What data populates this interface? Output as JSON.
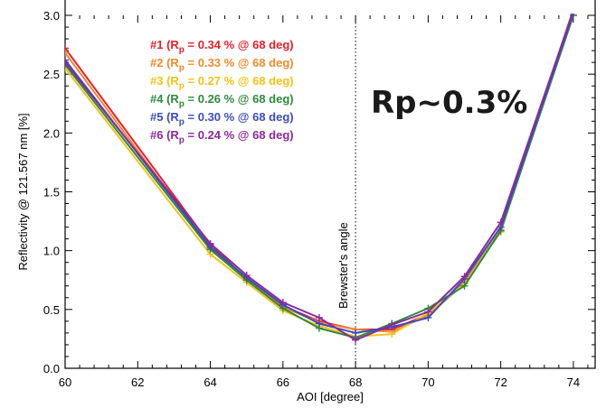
{
  "chart_data": {
    "type": "line",
    "title": "",
    "xlabel": "AOI [degree]",
    "ylabel": "Reflectivity @ 121.567 nm [%]",
    "xlim": [
      60,
      74.6
    ],
    "ylim": [
      0.0,
      3.0
    ],
    "xticks": [
      60,
      62,
      64,
      66,
      68,
      70,
      72,
      74
    ],
    "xtick_labels": [
      "60",
      "62",
      "64",
      "66",
      "68",
      "70",
      "72",
      "74"
    ],
    "yticks": [
      0.0,
      0.5,
      1.0,
      1.5,
      2.0,
      2.5,
      3.0
    ],
    "ytick_labels": [
      "0.0",
      "0.5",
      "1.0",
      "1.5",
      "2.0",
      "2.5",
      "3.0"
    ],
    "grid": false,
    "legend_placement": "top-left",
    "x": [
      60,
      64,
      65,
      66,
      67,
      68,
      69,
      70,
      71,
      72,
      74
    ],
    "series": [
      {
        "name": "#1",
        "legend_text": "#1 (R",
        "sub": "p",
        "legend_suffix": " = 0.34 % @ 68 deg)",
        "color": "#e8202a",
        "values": [
          2.72,
          1.05,
          0.76,
          0.53,
          0.4,
          0.33,
          0.33,
          0.46,
          0.73,
          1.18,
          3.05
        ]
      },
      {
        "name": "#2",
        "legend_text": "#2 (R",
        "sub": "p",
        "legend_suffix": " = 0.33 % @ 68 deg)",
        "color": "#f08a2c",
        "values": [
          2.68,
          1.02,
          0.75,
          0.52,
          0.39,
          0.33,
          0.31,
          0.45,
          0.72,
          1.16,
          3.02
        ]
      },
      {
        "name": "#3",
        "legend_text": "#3 (R",
        "sub": "p",
        "legend_suffix": " = 0.27 % @ 68 deg)",
        "color": "#f2c218",
        "values": [
          2.55,
          0.97,
          0.73,
          0.49,
          0.36,
          0.27,
          0.29,
          0.47,
          0.72,
          1.18,
          3.0
        ]
      },
      {
        "name": "#4",
        "legend_text": "#4 (R",
        "sub": "p",
        "legend_suffix": " = 0.26 % @ 68 deg)",
        "color": "#2e8b3a",
        "values": [
          2.58,
          1.01,
          0.75,
          0.51,
          0.34,
          0.26,
          0.38,
          0.51,
          0.7,
          1.17,
          3.0
        ]
      },
      {
        "name": "#5",
        "legend_text": "#5 (R",
        "sub": "p",
        "legend_suffix": " = 0.30 % @ 68 deg)",
        "color": "#3a4cc0",
        "values": [
          2.62,
          1.03,
          0.77,
          0.54,
          0.38,
          0.3,
          0.35,
          0.43,
          0.76,
          1.2,
          3.02
        ]
      },
      {
        "name": "#6",
        "legend_text": "#6 (R",
        "sub": "p",
        "legend_suffix": " = 0.24 % @ 68 deg)",
        "color": "#8a2a9e",
        "values": [
          2.6,
          1.06,
          0.79,
          0.56,
          0.43,
          0.24,
          0.37,
          0.48,
          0.78,
          1.24,
          3.04
        ]
      }
    ],
    "vline": {
      "x": 68,
      "label": "Brewster's angle"
    },
    "annotation": "Rp~0.3%"
  }
}
